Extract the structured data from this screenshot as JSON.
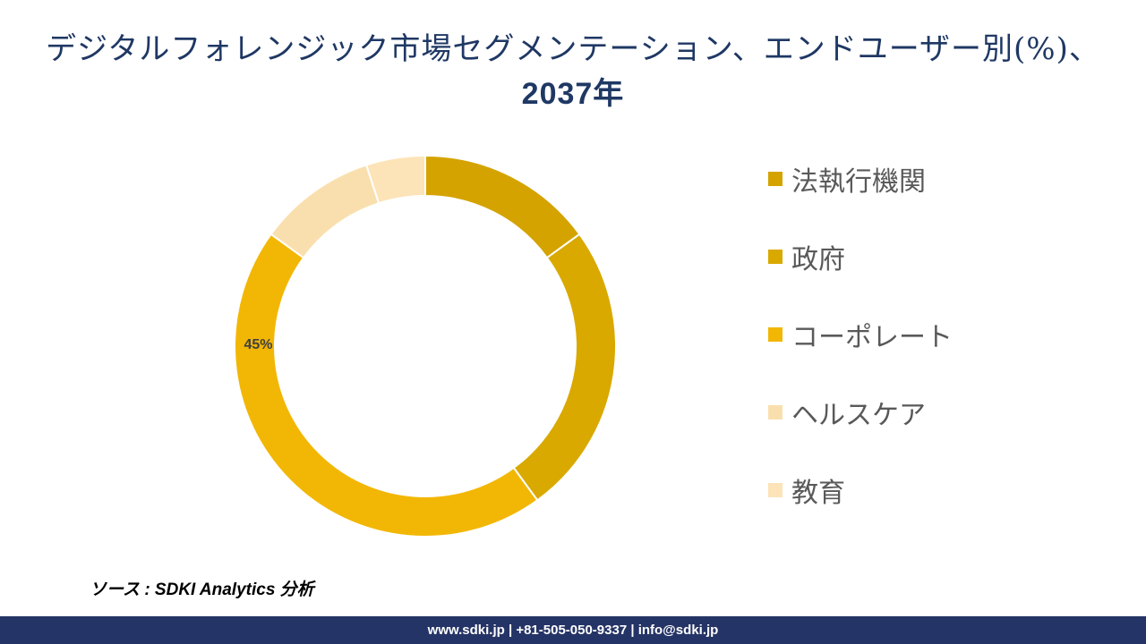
{
  "title": {
    "line1": "デジタルフォレンジック市場セグメンテーション、エンドユーザー別(%)、",
    "line2": "2037年"
  },
  "chart_data": {
    "type": "pie",
    "donut": true,
    "categories": [
      "法執行機関",
      "政府",
      "コーポレート",
      "ヘルスケア",
      "教育"
    ],
    "values": [
      15,
      25,
      45,
      10,
      5
    ],
    "colors": [
      "#d4a300",
      "#d9a900",
      "#f2b705",
      "#fadfae",
      "#fde3b8"
    ],
    "data_labels": [
      "",
      "",
      "45%",
      "",
      ""
    ],
    "legend_position": "right"
  },
  "source": "ソース : SDKI Analytics 分析",
  "footer": "www.sdki.jp | +81-505-050-9337 | info@sdki.jp"
}
